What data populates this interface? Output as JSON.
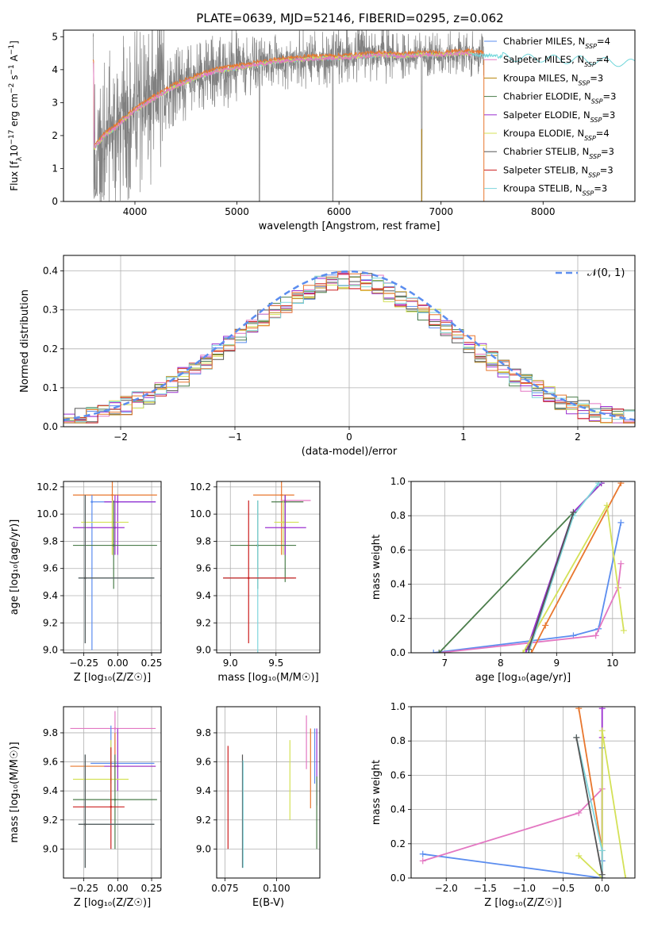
{
  "figure_title": "PLATE=0639, MJD=52146, FIBERID=0295, z=0.062",
  "legend_entries": [
    {
      "name": "Chabrier MILES, N",
      "sub": "SSP",
      "eq": "=4",
      "color": "#5b8def"
    },
    {
      "name": "Salpeter MILES, N",
      "sub": "SSP",
      "eq": "=4",
      "color": "#e377c2"
    },
    {
      "name": "Kroupa MILES, N",
      "sub": "SSP",
      "eq": "=3",
      "color": "#b8860b"
    },
    {
      "name": "Chabrier ELODIE, N",
      "sub": "SSP",
      "eq": "=3",
      "color": "#4b7d4b"
    },
    {
      "name": "Salpeter ELODIE, N",
      "sub": "SSP",
      "eq": "=3",
      "color": "#9b30d0"
    },
    {
      "name": "Kroupa ELODIE, N",
      "sub": "SSP",
      "eq": "=4",
      "color": "#d4e157"
    },
    {
      "name": "Chabrier STELIB, N",
      "sub": "SSP",
      "eq": "=3",
      "color": "#555555"
    },
    {
      "name": "Salpeter STELIB, N",
      "sub": "SSP",
      "eq": "=3",
      "color": "#cc2020"
    },
    {
      "name": "Kroupa STELIB, N",
      "sub": "SSP",
      "eq": "=3",
      "color": "#7fd6dd"
    }
  ],
  "colors": {
    "data": "#808080",
    "model1": "#6fd6da",
    "model2": "#e8772e",
    "model3": "#d4e157",
    "model4": "#e377c2",
    "gauss": "#5b8def",
    "grid": "#b0b0b0"
  },
  "chart_data": [
    {
      "id": "spectrum",
      "type": "line",
      "xlabel": "wavelength [Angstrom, rest frame]",
      "ylabel_parts": [
        "Flux [f",
        "λ",
        "10",
        "−17",
        " erg cm",
        "−2",
        " s",
        "−1",
        " A",
        "−1",
        "]"
      ],
      "xlim": [
        3300,
        8900
      ],
      "ylim": [
        0,
        5.2
      ],
      "xticks": [
        4000,
        5000,
        6000,
        7000,
        8000
      ],
      "yticks": [
        0,
        1,
        2,
        3,
        4,
        5
      ],
      "continuum": {
        "x": [
          3600,
          3700,
          3800,
          3900,
          4000,
          4200,
          4400,
          4600,
          4800,
          5000,
          5200,
          5400,
          5600,
          5800,
          6000,
          6200,
          6400,
          6600,
          6800,
          7000,
          7200,
          7400,
          7600,
          7800,
          8000,
          8200,
          8400,
          8600,
          8800
        ],
        "y": [
          1.6,
          2.0,
          2.2,
          2.5,
          2.75,
          3.15,
          3.5,
          3.75,
          3.95,
          4.05,
          4.15,
          4.25,
          4.3,
          4.35,
          4.35,
          4.4,
          4.45,
          4.4,
          4.45,
          4.45,
          4.5,
          4.45,
          4.4,
          4.35,
          4.35,
          4.3,
          4.3,
          4.25,
          4.2
        ]
      }
    },
    {
      "id": "residuals",
      "type": "histogram",
      "xlabel": "(data-model)/error",
      "ylabel": "Normed distribution",
      "xlim": [
        -2.5,
        2.5
      ],
      "ylim": [
        0,
        0.44
      ],
      "xticks": [
        -2,
        -1,
        0,
        1,
        2
      ],
      "yticks": [
        0.0,
        0.1,
        0.2,
        0.3,
        0.4
      ],
      "legend": "𝒩(0, 1)",
      "gaussian": {
        "mu": 0,
        "sigma": 1
      },
      "bin_width": 0.1
    },
    {
      "id": "age_vs_Z",
      "type": "scatter",
      "xlabel": "Z [log₁₀(Z/Z☉)]",
      "ylabel": "age  [log₁₀(age/yr)]",
      "xlim": [
        -0.4,
        0.32
      ],
      "ylim": [
        8.98,
        10.24
      ],
      "xticks": [
        -0.25,
        0.0,
        0.25
      ],
      "yticks": [
        9.0,
        9.2,
        9.4,
        9.6,
        9.8,
        10.0,
        10.2
      ],
      "points": [
        {
          "x": -0.04,
          "y": 10.14,
          "xe": [
            -0.33,
            0.29
          ],
          "ye": [
            9.7,
            10.24
          ],
          "c": "#e8772e"
        },
        {
          "x": -0.19,
          "y": 10.09,
          "xe": [
            -0.2,
            0.28
          ],
          "ye": [
            9.0,
            10.14
          ],
          "c": "#5b8def"
        },
        {
          "x": 0.0,
          "y": 10.09,
          "xe": [
            -0.1,
            0.28
          ],
          "ye": [
            9.7,
            10.14
          ],
          "c": "#9b30d0"
        },
        {
          "x": -0.04,
          "y": 9.94,
          "xe": [
            -0.27,
            0.08
          ],
          "ye": [
            9.7,
            10.1
          ],
          "c": "#d4e157"
        },
        {
          "x": -0.02,
          "y": 9.9,
          "xe": [
            -0.33,
            0.05
          ],
          "ye": [
            9.7,
            10.14
          ],
          "c": "#9b30d0"
        },
        {
          "x": -0.03,
          "y": 9.77,
          "xe": [
            -0.33,
            0.29
          ],
          "ye": [
            9.45,
            10.1
          ],
          "c": "#4b7d4b"
        },
        {
          "x": -0.24,
          "y": 9.53,
          "xe": [
            -0.29,
            0.27
          ],
          "ye": [
            9.05,
            10.14
          ],
          "c": "#7fd6dd"
        },
        {
          "x": -0.24,
          "y": 9.53,
          "xe": [
            -0.29,
            0.27
          ],
          "ye": [
            9.05,
            10.14
          ],
          "c": "#555555"
        }
      ]
    },
    {
      "id": "age_vs_mass",
      "type": "scatter",
      "xlabel": "mass [log₁₀(M/M☉)]",
      "ylabel": "",
      "xlim": [
        8.85,
        9.98
      ],
      "ylim": [
        8.98,
        10.24
      ],
      "xticks": [
        9.0,
        9.5
      ],
      "yticks": [
        9.0,
        9.2,
        9.4,
        9.6,
        9.8,
        10.0,
        10.2
      ],
      "points": [
        {
          "x": 9.56,
          "y": 10.14,
          "xe": [
            9.25,
            9.7
          ],
          "ye": [
            9.7,
            10.24
          ],
          "c": "#e8772e"
        },
        {
          "x": 9.6,
          "y": 10.1,
          "xe": [
            9.55,
            9.88
          ],
          "ye": [
            9.7,
            10.14
          ],
          "c": "#e377c2"
        },
        {
          "x": 9.6,
          "y": 10.09,
          "xe": [
            9.45,
            9.8
          ],
          "ye": [
            9.5,
            10.14
          ],
          "c": "#4b7d4b"
        },
        {
          "x": 9.58,
          "y": 9.94,
          "xe": [
            9.48,
            9.75
          ],
          "ye": [
            9.7,
            10.1
          ],
          "c": "#d4e157"
        },
        {
          "x": 9.6,
          "y": 9.9,
          "xe": [
            9.38,
            9.83
          ],
          "ye": [
            9.7,
            10.14
          ],
          "c": "#9b30d0"
        },
        {
          "x": 9.3,
          "y": 9.77,
          "xe": [
            9.0,
            9.72
          ],
          "ye": [
            9.45,
            10.1
          ],
          "c": "#4b7d4b"
        },
        {
          "x": 9.3,
          "y": 9.53,
          "xe": [
            8.92,
            9.7
          ],
          "ye": [
            8.9,
            10.1
          ],
          "c": "#7fd6dd"
        },
        {
          "x": 9.2,
          "y": 9.53,
          "xe": [
            8.92,
            9.72
          ],
          "ye": [
            9.05,
            10.1
          ],
          "c": "#cc2020"
        }
      ]
    },
    {
      "id": "weight_vs_age",
      "type": "line",
      "xlabel": "age  [log₁₀(age/yr)]",
      "ylabel": "mass weight",
      "xlim": [
        6.4,
        10.4
      ],
      "ylim": [
        0,
        1
      ],
      "xticks": [
        7,
        8,
        9,
        10
      ],
      "yticks": [
        0.0,
        0.2,
        0.4,
        0.6,
        0.8,
        1.0
      ],
      "series": [
        {
          "c": "#5b8def",
          "x": [
            6.8,
            9.3,
            9.75,
            10.15
          ],
          "y": [
            0.0,
            0.1,
            0.14,
            0.76
          ]
        },
        {
          "c": "#e377c2",
          "x": [
            6.9,
            9.7,
            10.1,
            10.15
          ],
          "y": [
            0.0,
            0.1,
            0.38,
            0.52
          ]
        },
        {
          "c": "#e8772e",
          "x": [
            8.55,
            8.8,
            10.15
          ],
          "y": [
            0.0,
            0.16,
            0.99
          ]
        },
        {
          "c": "#4b7d4b",
          "x": [
            6.9,
            9.8
          ],
          "y": [
            0.0,
            0.99
          ]
        },
        {
          "c": "#9b30d0",
          "x": [
            8.45,
            9.3,
            9.8
          ],
          "y": [
            0.0,
            0.82,
            0.99
          ]
        },
        {
          "c": "#d4e157",
          "x": [
            8.4,
            9.9,
            10.2
          ],
          "y": [
            0.0,
            0.86,
            0.13
          ]
        },
        {
          "c": "#7fd6dd",
          "x": [
            8.5,
            9.3,
            9.75
          ],
          "y": [
            0.0,
            0.8,
            0.99
          ]
        },
        {
          "c": "#555555",
          "x": [
            8.5,
            9.3
          ],
          "y": [
            0.02,
            0.82
          ]
        }
      ]
    },
    {
      "id": "mass_vs_Z",
      "type": "scatter",
      "xlabel": "Z [log₁₀(Z/Z☉)]",
      "ylabel": "mass [log₁₀(M/M☉)]",
      "xlim": [
        -0.4,
        0.32
      ],
      "ylim": [
        8.8,
        9.98
      ],
      "xticks": [
        -0.25,
        0.0,
        0.25
      ],
      "yticks": [
        9.0,
        9.2,
        9.4,
        9.6,
        9.8
      ],
      "points": [
        {
          "x": -0.02,
          "y": 9.83,
          "xe": [
            -0.35,
            0.28
          ],
          "ye": [
            9.55,
            9.95
          ],
          "c": "#e377c2"
        },
        {
          "x": -0.05,
          "y": 9.59,
          "xe": [
            -0.2,
            0.27
          ],
          "ye": [
            9.45,
            9.85
          ],
          "c": "#5b8def"
        },
        {
          "x": -0.02,
          "y": 9.57,
          "xe": [
            -0.35,
            0.28
          ],
          "ye": [
            9.4,
            9.8
          ],
          "c": "#e8772e"
        },
        {
          "x": 0.0,
          "y": 9.57,
          "xe": [
            -0.1,
            0.28
          ],
          "ye": [
            9.4,
            9.83
          ],
          "c": "#9b30d0"
        },
        {
          "x": -0.05,
          "y": 9.48,
          "xe": [
            -0.33,
            0.08
          ],
          "ye": [
            9.2,
            9.75
          ],
          "c": "#d4e157"
        },
        {
          "x": -0.02,
          "y": 9.34,
          "xe": [
            -0.33,
            0.29
          ],
          "ye": [
            9.0,
            9.65
          ],
          "c": "#4b7d4b"
        },
        {
          "x": -0.05,
          "y": 9.29,
          "xe": [
            -0.33,
            0.05
          ],
          "ye": [
            9.0,
            9.7
          ],
          "c": "#cc2020"
        },
        {
          "x": -0.24,
          "y": 9.17,
          "xe": [
            -0.29,
            0.27
          ],
          "ye": [
            8.87,
            9.65
          ],
          "c": "#7fd6dd"
        },
        {
          "x": -0.24,
          "y": 9.17,
          "xe": [
            -0.29,
            0.27
          ],
          "ye": [
            8.87,
            9.65
          ],
          "c": "#555555"
        }
      ]
    },
    {
      "id": "mass_vs_ebv",
      "type": "scatter",
      "xlabel": "E(B-V)",
      "ylabel": "",
      "xlim": [
        0.071,
        0.121
      ],
      "ylim": [
        8.8,
        9.98
      ],
      "xticks": [
        0.075,
        0.1
      ],
      "yticks": [
        9.0,
        9.2,
        9.4,
        9.6,
        9.8
      ],
      "bars": [
        {
          "x": 0.0765,
          "ye": [
            9.0,
            9.71
          ],
          "c": "#cc2020"
        },
        {
          "x": 0.0835,
          "ye": [
            8.87,
            9.65
          ],
          "c": "#555555"
        },
        {
          "x": 0.0838,
          "ye": [
            8.87,
            9.61
          ],
          "c": "#7fd6dd"
        },
        {
          "x": 0.1065,
          "ye": [
            9.2,
            9.75
          ],
          "c": "#d4e157"
        },
        {
          "x": 0.1145,
          "ye": [
            9.55,
            9.92
          ],
          "c": "#e377c2"
        },
        {
          "x": 0.1165,
          "ye": [
            9.28,
            9.83
          ],
          "c": "#e8772e"
        },
        {
          "x": 0.1185,
          "ye": [
            9.45,
            9.83
          ],
          "c": "#5b8def"
        },
        {
          "x": 0.1195,
          "ye": [
            9.3,
            9.83
          ],
          "c": "#9b30d0"
        },
        {
          "x": 0.1195,
          "ye": [
            9.0,
            9.5
          ],
          "c": "#4b7d4b"
        }
      ]
    },
    {
      "id": "weight_vs_Z",
      "type": "line",
      "xlabel": "Z [log₁₀(Z/Z☉)]",
      "ylabel": "mass weight",
      "xlim": [
        -2.45,
        0.42
      ],
      "ylim": [
        0,
        1
      ],
      "xticks": [
        -2.0,
        -1.5,
        -1.0,
        -0.5,
        0.0
      ],
      "yticks": [
        0.0,
        0.2,
        0.4,
        0.6,
        0.8,
        1.0
      ],
      "series": [
        {
          "c": "#5b8def",
          "x": [
            -2.3,
            0.0,
            0.0,
            0.0
          ],
          "y": [
            0.14,
            0.0,
            0.76,
            0.1
          ]
        },
        {
          "c": "#e377c2",
          "x": [
            -2.3,
            -0.3,
            0.0,
            0.0
          ],
          "y": [
            0.1,
            0.38,
            0.52,
            0.0
          ]
        },
        {
          "c": "#e8772e",
          "x": [
            -0.3,
            0.0,
            0.0
          ],
          "y": [
            0.99,
            0.16,
            0.0
          ]
        },
        {
          "c": "#9b30d0",
          "x": [
            0.0,
            0.0,
            0.0
          ],
          "y": [
            0.99,
            0.82,
            0.0
          ]
        },
        {
          "c": "#d4e157",
          "x": [
            -0.3,
            0.0,
            0.0,
            0.3
          ],
          "y": [
            0.13,
            0.0,
            0.86,
            0.0
          ]
        },
        {
          "c": "#7fd6dd",
          "x": [
            -0.33,
            0.0,
            0.0
          ],
          "y": [
            0.82,
            0.16,
            0.0
          ]
        },
        {
          "c": "#555555",
          "x": [
            -0.33,
            0.0
          ],
          "y": [
            0.82,
            0.02
          ]
        }
      ]
    }
  ]
}
